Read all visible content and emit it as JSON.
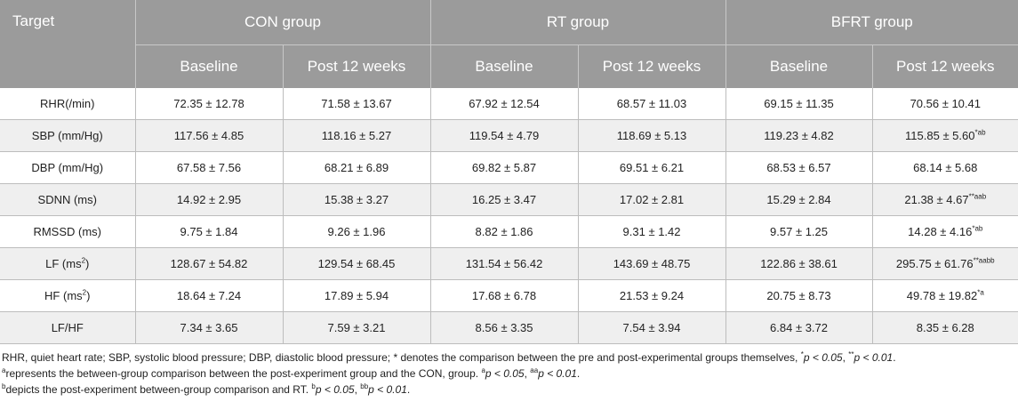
{
  "table": {
    "header": {
      "target": "Target",
      "groups": [
        "CON group",
        "RT group",
        "BFRT group"
      ],
      "sub": [
        "Baseline",
        "Post 12 weeks",
        "Baseline",
        "Post 12 weeks",
        "Baseline",
        "Post 12 weeks"
      ]
    },
    "rows": [
      {
        "label": "RHR(/min)",
        "label_sup": "",
        "cells": [
          {
            "v": "72.35 ± 12.78",
            "s": ""
          },
          {
            "v": "71.58 ± 13.67",
            "s": ""
          },
          {
            "v": "67.92 ± 12.54",
            "s": ""
          },
          {
            "v": "68.57 ± 11.03",
            "s": ""
          },
          {
            "v": "69.15 ± 11.35",
            "s": ""
          },
          {
            "v": "70.56 ± 10.41",
            "s": ""
          }
        ]
      },
      {
        "label": "SBP (mm/Hg)",
        "label_sup": "",
        "cells": [
          {
            "v": "117.56 ± 4.85",
            "s": ""
          },
          {
            "v": "118.16 ± 5.27",
            "s": ""
          },
          {
            "v": "119.54 ± 4.79",
            "s": ""
          },
          {
            "v": "118.69 ± 5.13",
            "s": ""
          },
          {
            "v": "119.23 ± 4.82",
            "s": ""
          },
          {
            "v": "115.85 ± 5.60",
            "s": "*ab"
          }
        ]
      },
      {
        "label": "DBP (mm/Hg)",
        "label_sup": "",
        "cells": [
          {
            "v": "67.58 ± 7.56",
            "s": ""
          },
          {
            "v": "68.21 ± 6.89",
            "s": ""
          },
          {
            "v": "69.82 ± 5.87",
            "s": ""
          },
          {
            "v": "69.51 ± 6.21",
            "s": ""
          },
          {
            "v": "68.53 ± 6.57",
            "s": ""
          },
          {
            "v": "68.14 ± 5.68",
            "s": ""
          }
        ]
      },
      {
        "label": "SDNN (ms)",
        "label_sup": "",
        "cells": [
          {
            "v": "14.92 ± 2.95",
            "s": ""
          },
          {
            "v": "15.38 ± 3.27",
            "s": ""
          },
          {
            "v": "16.25 ± 3.47",
            "s": ""
          },
          {
            "v": "17.02 ± 2.81",
            "s": ""
          },
          {
            "v": "15.29 ± 2.84",
            "s": ""
          },
          {
            "v": "21.38 ± 4.67",
            "s": "**aab"
          }
        ]
      },
      {
        "label": "RMSSD (ms)",
        "label_sup": "",
        "cells": [
          {
            "v": "9.75 ± 1.84",
            "s": ""
          },
          {
            "v": "9.26 ± 1.96",
            "s": ""
          },
          {
            "v": "8.82 ± 1.86",
            "s": ""
          },
          {
            "v": "9.31 ± 1.42",
            "s": ""
          },
          {
            "v": "9.57 ± 1.25",
            "s": ""
          },
          {
            "v": "14.28 ± 4.16",
            "s": "*ab"
          }
        ]
      },
      {
        "label": "LF (ms",
        "label_sup": "2",
        "label_tail": ")",
        "cells": [
          {
            "v": "128.67 ± 54.82",
            "s": ""
          },
          {
            "v": "129.54 ± 68.45",
            "s": ""
          },
          {
            "v": "131.54 ± 56.42",
            "s": ""
          },
          {
            "v": "143.69 ± 48.75",
            "s": ""
          },
          {
            "v": "122.86 ± 38.61",
            "s": ""
          },
          {
            "v": "295.75 ± 61.76",
            "s": "**aabb"
          }
        ]
      },
      {
        "label": "HF (ms",
        "label_sup": "2",
        "label_tail": ")",
        "cells": [
          {
            "v": "18.64 ± 7.24",
            "s": ""
          },
          {
            "v": "17.89 ± 5.94",
            "s": ""
          },
          {
            "v": "17.68 ± 6.78",
            "s": ""
          },
          {
            "v": "21.53 ± 9.24",
            "s": ""
          },
          {
            "v": "20.75 ± 8.73",
            "s": ""
          },
          {
            "v": "49.78 ± 19.82",
            "s": "*a"
          }
        ]
      },
      {
        "label": "LF/HF",
        "label_sup": "",
        "cells": [
          {
            "v": "7.34 ± 3.65",
            "s": ""
          },
          {
            "v": "7.59 ± 3.21",
            "s": ""
          },
          {
            "v": "8.56 ± 3.35",
            "s": ""
          },
          {
            "v": "7.54 ± 3.94",
            "s": ""
          },
          {
            "v": "6.84 ± 3.72",
            "s": ""
          },
          {
            "v": "8.35 ± 6.28",
            "s": ""
          }
        ]
      }
    ]
  },
  "notes": {
    "n1_text": "RHR, quiet heart rate; SBP, systolic blood pressure; DBP, diastolic blood pressure; * denotes the comparison between the pre and post-experimental groups themselves, ",
    "n1_s1": "*",
    "n1_p1": "p < 0.05",
    "n1_s2": "**",
    "n1_p2": "p < 0.01",
    "n2_lead": "a",
    "n2_text": "represents the between-group comparison between the post-experiment group and the CON, group. ",
    "n2_s1": "a",
    "n2_p1": "p < 0.05",
    "n2_s2": "aa",
    "n2_p2": "p < 0.01",
    "n3_lead": "b",
    "n3_text": "depicts the post-experiment between-group comparison and RT. ",
    "n3_s1": "b",
    "n3_p1": "p < 0.05",
    "n3_s2": "bb",
    "n3_p2": "p < 0.01"
  }
}
